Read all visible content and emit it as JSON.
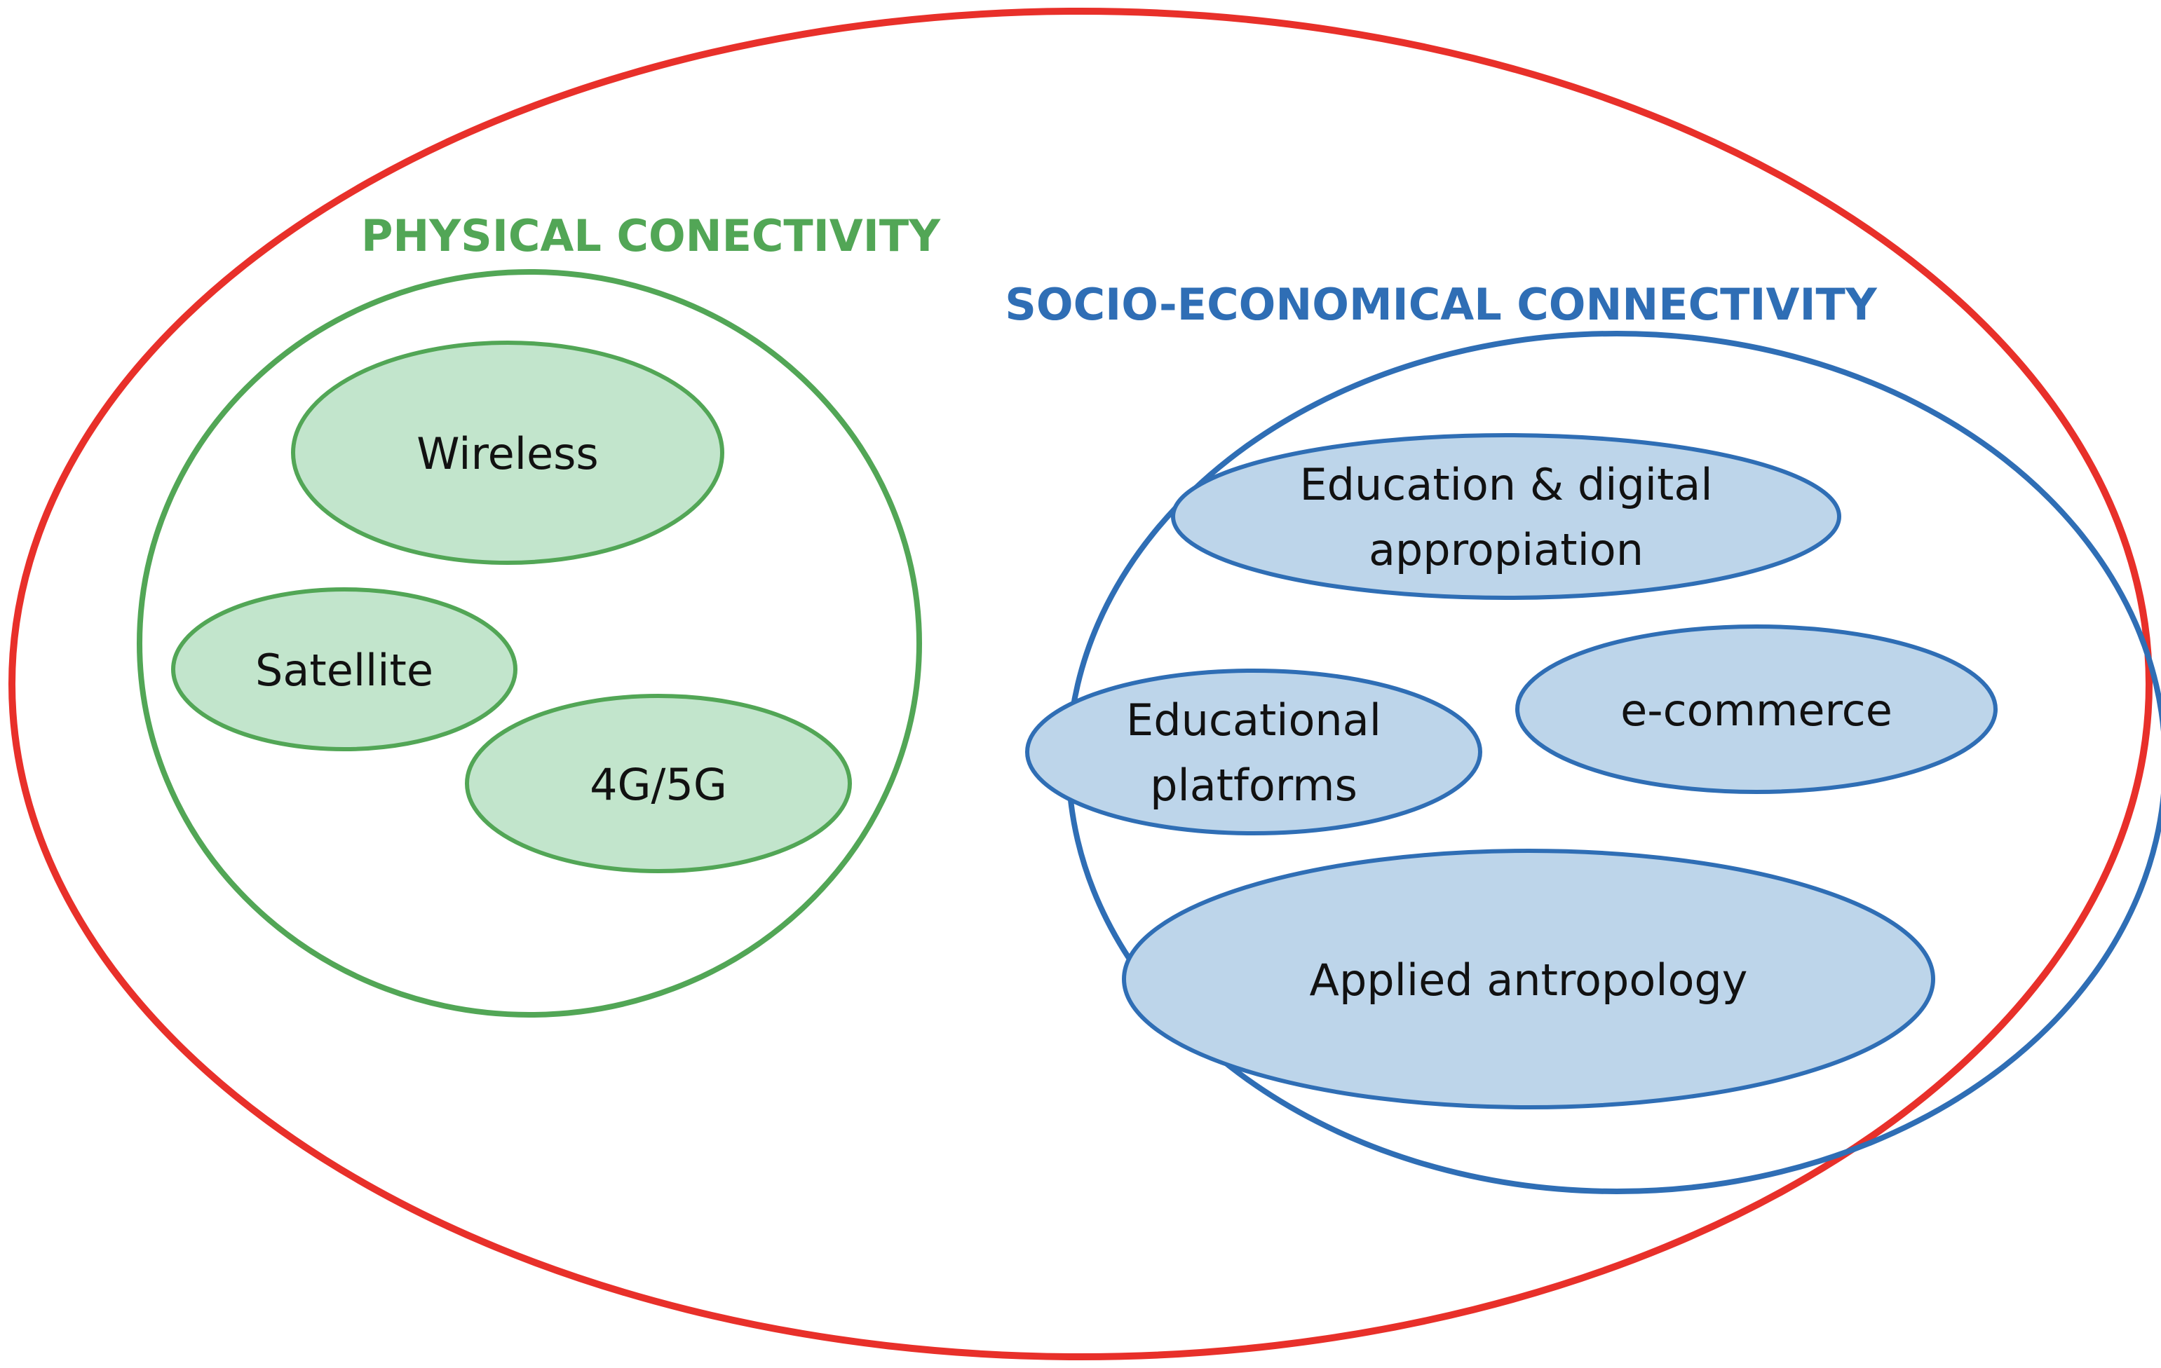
{
  "colors": {
    "outer_border": "#e8302a",
    "physical_border": "#52a656",
    "physical_fill": "#c2e5cc",
    "socio_border": "#2f6eb5",
    "socio_fill": "#bdd5ea",
    "text": "#111111"
  },
  "physical": {
    "title": "PHYSICAL CONECTIVITY",
    "items": {
      "wireless": "Wireless",
      "satellite": "Satellite",
      "mobile": "4G/5G"
    }
  },
  "socio": {
    "title": "SOCIO-ECONOMICAL CONNECTIVITY",
    "items": {
      "education_line1": "Education & digital",
      "education_line2": "appropiation",
      "platforms_line1": "Educational",
      "platforms_line2": "platforms",
      "ecommerce": "e-commerce",
      "anthropology": "Applied antropology"
    }
  }
}
